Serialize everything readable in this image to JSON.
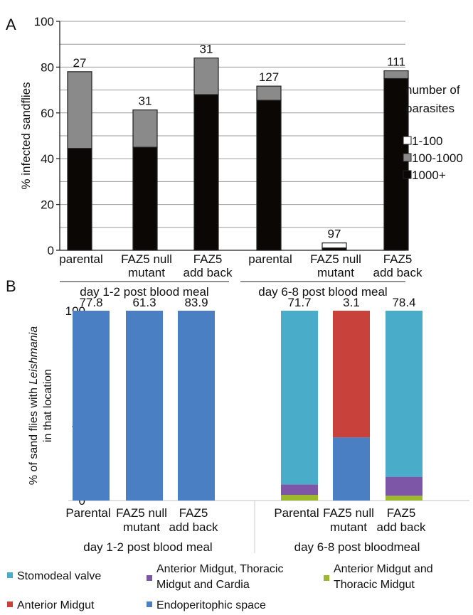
{
  "chart_data": [
    {
      "panel": "A",
      "type": "bar",
      "stacked": true,
      "ylabel": "% infected sandflies",
      "ylim": [
        0,
        100
      ],
      "yticks": [
        0,
        20,
        40,
        60,
        80,
        100
      ],
      "grid": true,
      "legend_title": "number of parasites",
      "legend_title_lines": [
        "number of",
        "parasites"
      ],
      "legend_position": "right",
      "categories": [
        {
          "label": [
            "parental"
          ],
          "group": 0,
          "n": "27"
        },
        {
          "label": [
            "FAZ5 null",
            "mutant"
          ],
          "group": 0,
          "n": "31"
        },
        {
          "label": [
            "FAZ5",
            "add back"
          ],
          "group": 0,
          "n": "31"
        },
        {
          "label": [
            "parental"
          ],
          "group": 1,
          "n": "127"
        },
        {
          "label": [
            "FAZ5 null",
            "mutant"
          ],
          "group": 1,
          "n": "97"
        },
        {
          "label": [
            "FAZ5",
            "add back"
          ],
          "group": 1,
          "n": "111"
        }
      ],
      "groups": [
        "day 1-2 post blood meal",
        "day 6-8 post blood meal"
      ],
      "series": [
        {
          "name": "1000+",
          "color": "#0b0705",
          "values": [
            44.5,
            45,
            68,
            65.5,
            1,
            75
          ]
        },
        {
          "name": "100-1000",
          "color": "#8a8a8a",
          "values": [
            33.5,
            16.3,
            16,
            6.2,
            0,
            3.4
          ]
        },
        {
          "name": "1-100",
          "color": "#ffffff",
          "values": [
            0,
            0,
            0,
            0,
            2.2,
            0
          ]
        }
      ]
    },
    {
      "panel": "B",
      "type": "bar",
      "stacked": true,
      "ylabel_lines": [
        [
          {
            "t": "% of sand flies with ",
            "i": false
          },
          {
            "t": "Leishmania",
            "i": true
          }
        ],
        [
          {
            "t": "in that location",
            "i": false
          }
        ]
      ],
      "ylim": [
        0,
        100
      ],
      "yticks": [
        0,
        20,
        40,
        60,
        80,
        100
      ],
      "grid": false,
      "legend_position": "bottom",
      "categories": [
        {
          "label": [
            "Parental"
          ],
          "group": 0,
          "top": "77.8"
        },
        {
          "label": [
            "FAZ5 null",
            "mutant"
          ],
          "group": 0,
          "top": "61.3"
        },
        {
          "label": [
            "FAZ5",
            "add back"
          ],
          "group": 0,
          "top": "83.9"
        },
        {
          "label": [
            "Parental"
          ],
          "group": 1,
          "top": "71.7"
        },
        {
          "label": [
            "FAZ5 null",
            "mutant"
          ],
          "group": 1,
          "top": "3.1"
        },
        {
          "label": [
            "FAZ5",
            "add back"
          ],
          "group": 1,
          "top": "78.4"
        }
      ],
      "groups": [
        "day 1-2 post blood meal",
        "day 6-8 post bloodmeal"
      ],
      "series": [
        {
          "name": "Anterior Midgut and Thoracic Midgut",
          "legend_lines": [
            "Anterior Midgut and",
            "Thoracic Midgut"
          ],
          "color": "#9cb92e",
          "values": [
            0,
            0,
            0,
            3,
            0,
            2.5
          ]
        },
        {
          "name": "Anterior Midgut, Thoracic Midgut and Cardia",
          "legend_lines": [
            "Anterior Midgut, Thoracic",
            "Midgut and Cardia"
          ],
          "color": "#7e56a8",
          "values": [
            0,
            0,
            0,
            5.5,
            0,
            10
          ]
        },
        {
          "name": "Endoperitophic space",
          "legend_lines": [
            "Endoperitophic space"
          ],
          "color": "#4a7fc4",
          "values": [
            100,
            100,
            100,
            0,
            33.3,
            0
          ]
        },
        {
          "name": "Anterior Midgut",
          "legend_lines": [
            "Anterior Midgut"
          ],
          "color": "#c9413b",
          "values": [
            0,
            0,
            0,
            0,
            66.7,
            0
          ]
        },
        {
          "name": "Stomodeal valve",
          "legend_lines": [
            "Stomodeal valve"
          ],
          "color": "#49adc9",
          "values": [
            0,
            0,
            0,
            91.5,
            0,
            87.5
          ]
        }
      ],
      "legend_order": [
        4,
        1,
        0,
        3,
        2
      ]
    }
  ]
}
